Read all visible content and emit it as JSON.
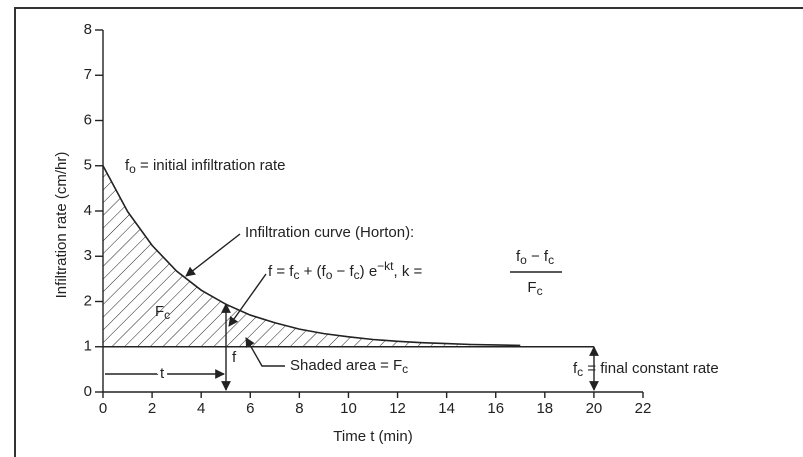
{
  "chart_data": {
    "type": "line",
    "xlabel": "Time t (min)",
    "ylabel": "Infiltration rate (cm/hr)",
    "xlim": [
      0,
      22
    ],
    "ylim": [
      0,
      8
    ],
    "xticks": [
      0,
      2,
      4,
      6,
      8,
      10,
      12,
      14,
      16,
      18,
      20,
      22
    ],
    "yticks": [
      0,
      1,
      2,
      3,
      4,
      5,
      6,
      7,
      8
    ],
    "hatched": true,
    "series": [
      {
        "name": "Infiltration curve (Horton)",
        "color": "#222222",
        "x": [
          0,
          1,
          2,
          3,
          4,
          5,
          6,
          7,
          8,
          9,
          10,
          11,
          12,
          13,
          14,
          15,
          16,
          17
        ],
        "values": [
          5,
          3.99,
          3.24,
          2.67,
          2.25,
          1.94,
          1.7,
          1.53,
          1.39,
          1.29,
          1.22,
          1.16,
          1.12,
          1.09,
          1.07,
          1.05,
          1.04,
          1.03
        ]
      },
      {
        "name": "Final constant rate",
        "color": "#222222",
        "x": [
          0,
          20
        ],
        "values": [
          1,
          1
        ]
      }
    ],
    "annotations": {
      "initial": [
        {
          "t": "f"
        },
        {
          "t": "o",
          "sub": true
        },
        {
          "t": " = initial infiltration rate"
        }
      ],
      "curve": [
        {
          "t": "Infiltration curve (Horton):"
        }
      ],
      "equation": [
        {
          "t": "f = f"
        },
        {
          "t": "c",
          "sub": true
        },
        {
          "t": " + (f"
        },
        {
          "t": "o",
          "sub": true
        },
        {
          "t": " − f"
        },
        {
          "t": "c",
          "sub": true
        },
        {
          "t": ") e"
        },
        {
          "t": "−kt",
          "sup": true
        },
        {
          "t": ", k = "
        }
      ],
      "numerator": [
        {
          "t": "f"
        },
        {
          "t": "o",
          "sub": true
        },
        {
          "t": " − f"
        },
        {
          "t": "c",
          "sub": true
        }
      ],
      "denominator": [
        {
          "t": "F"
        },
        {
          "t": "c",
          "sub": true
        }
      ],
      "area_label": [
        {
          "t": "F"
        },
        {
          "t": "c",
          "sub": true
        }
      ],
      "shaded": [
        {
          "t": "Shaded area = F"
        },
        {
          "t": "c",
          "sub": true
        }
      ],
      "final": [
        {
          "t": "f"
        },
        {
          "t": "c",
          "sub": true
        },
        {
          "t": " = final constant rate"
        }
      ],
      "t_label": [
        {
          "t": "t"
        }
      ],
      "f_label": [
        {
          "t": "f"
        }
      ]
    }
  }
}
